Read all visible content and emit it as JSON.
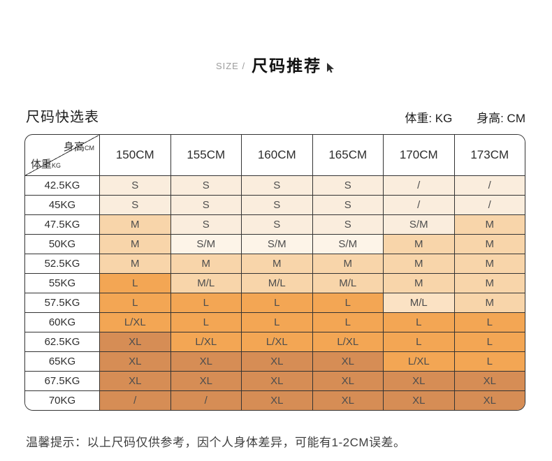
{
  "header": {
    "eyebrow": "SIZE /",
    "title": "尺码推荐",
    "table_title": "尺码快选表",
    "unit_weight": "体重: KG",
    "unit_height": "身高: CM"
  },
  "footer": {
    "note": "温馨提示：以上尺码仅供参考，因个人身体差异，可能有1-2CM误差。"
  },
  "chart_data": {
    "type": "table",
    "title": "尺码推荐",
    "subtitle": "尺码快选表",
    "column_header": "身高",
    "column_header_unit": "CM",
    "row_header": "体重",
    "row_header_unit": "KG",
    "columns": [
      "150CM",
      "155CM",
      "160CM",
      "165CM",
      "170CM",
      "173CM"
    ],
    "palette": {
      "s1": "#fdf4e8",
      "s2": "#faeddd",
      "s3": "#fbe2c4",
      "s4": "#f8d5aa",
      "s5": "#f3a654",
      "s6": "#d68d55"
    },
    "rows": [
      {
        "weight": "42.5KG",
        "sizes": [
          "S",
          "S",
          "S",
          "S",
          "/",
          "/"
        ],
        "colors": [
          "s2",
          "s2",
          "s2",
          "s2",
          "s2",
          "s2"
        ]
      },
      {
        "weight": "45KG",
        "sizes": [
          "S",
          "S",
          "S",
          "S",
          "/",
          "/"
        ],
        "colors": [
          "s2",
          "s2",
          "s2",
          "s2",
          "s2",
          "s2"
        ]
      },
      {
        "weight": "47.5KG",
        "sizes": [
          "M",
          "S",
          "S",
          "S",
          "S/M",
          "M"
        ],
        "colors": [
          "s4",
          "s2",
          "s2",
          "s2",
          "s2",
          "s4"
        ]
      },
      {
        "weight": "50KG",
        "sizes": [
          "M",
          "S/M",
          "S/M",
          "S/M",
          "M",
          "M"
        ],
        "colors": [
          "s4",
          "s1",
          "s1",
          "s1",
          "s4",
          "s4"
        ]
      },
      {
        "weight": "52.5KG",
        "sizes": [
          "M",
          "M",
          "M",
          "M",
          "M",
          "M"
        ],
        "colors": [
          "s4",
          "s4",
          "s4",
          "s4",
          "s4",
          "s4"
        ]
      },
      {
        "weight": "55KG",
        "sizes": [
          "L",
          "M/L",
          "M/L",
          "M/L",
          "M",
          "M"
        ],
        "colors": [
          "s5",
          "s4",
          "s4",
          "s4",
          "s4",
          "s4"
        ]
      },
      {
        "weight": "57.5KG",
        "sizes": [
          "L",
          "L",
          "L",
          "L",
          "M/L",
          "M"
        ],
        "colors": [
          "s5",
          "s5",
          "s5",
          "s5",
          "s3",
          "s4"
        ]
      },
      {
        "weight": "60KG",
        "sizes": [
          "L/XL",
          "L",
          "L",
          "L",
          "L",
          "L"
        ],
        "colors": [
          "s5",
          "s5",
          "s5",
          "s5",
          "s5",
          "s5"
        ]
      },
      {
        "weight": "62.5KG",
        "sizes": [
          "XL",
          "L/XL",
          "L/XL",
          "L/XL",
          "L",
          "L"
        ],
        "colors": [
          "s6",
          "s5",
          "s5",
          "s5",
          "s5",
          "s5"
        ]
      },
      {
        "weight": "65KG",
        "sizes": [
          "XL",
          "XL",
          "XL",
          "XL",
          "L/XL",
          "L"
        ],
        "colors": [
          "s6",
          "s6",
          "s6",
          "s6",
          "s5",
          "s5"
        ]
      },
      {
        "weight": "67.5KG",
        "sizes": [
          "XL",
          "XL",
          "XL",
          "XL",
          "XL",
          "XL"
        ],
        "colors": [
          "s6",
          "s6",
          "s6",
          "s6",
          "s6",
          "s6"
        ]
      },
      {
        "weight": "70KG",
        "sizes": [
          "/",
          "/",
          "XL",
          "XL",
          "XL",
          "XL"
        ],
        "colors": [
          "s6",
          "s6",
          "s6",
          "s6",
          "s6",
          "s6"
        ]
      }
    ]
  }
}
